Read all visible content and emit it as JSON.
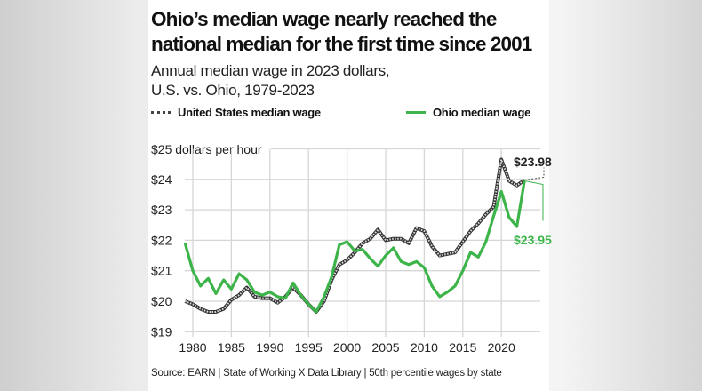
{
  "title": "Ohio’s median wage nearly reached the national median for the first time since 2001",
  "subtitle_line1": "Annual median wage in 2023 dollars,",
  "subtitle_line2": "U.S. vs. Ohio, 1979-2023",
  "source": "Source: EARN | State of Working X Data Library | 50th percentile wages by state",
  "chart_data": {
    "type": "line",
    "ylabel": "$25 dollars per hour",
    "ylim": [
      19,
      25
    ],
    "xlim": [
      1979,
      2023
    ],
    "grid": true,
    "legend": "top",
    "y_ticks": [
      "$19",
      "$20",
      "$21",
      "$22",
      "$23",
      "$24",
      "$25"
    ],
    "x_ticks": [
      "1980",
      "1985",
      "1990",
      "1995",
      "2000",
      "2005",
      "2010",
      "2015",
      "2020"
    ],
    "x": [
      1979,
      1980,
      1981,
      1982,
      1983,
      1984,
      1985,
      1986,
      1987,
      1988,
      1989,
      1990,
      1991,
      1992,
      1993,
      1994,
      1995,
      1996,
      1997,
      1998,
      1999,
      2000,
      2001,
      2002,
      2003,
      2004,
      2005,
      2006,
      2007,
      2008,
      2009,
      2010,
      2011,
      2012,
      2013,
      2014,
      2015,
      2016,
      2017,
      2018,
      2019,
      2020,
      2021,
      2022,
      2023
    ],
    "series": [
      {
        "name": "United States median wage",
        "color": "#555555",
        "style": "dotted",
        "values": [
          20.0,
          19.9,
          19.75,
          19.65,
          19.65,
          19.75,
          20.05,
          20.2,
          20.45,
          20.15,
          20.1,
          20.1,
          19.95,
          20.15,
          20.45,
          20.2,
          19.9,
          19.65,
          20.0,
          20.7,
          21.2,
          21.35,
          21.6,
          21.9,
          22.05,
          22.35,
          22.0,
          22.05,
          22.05,
          21.9,
          22.4,
          22.3,
          21.8,
          21.5,
          21.55,
          21.6,
          21.95,
          22.3,
          22.55,
          22.85,
          23.1,
          24.65,
          23.95,
          23.8,
          23.98
        ],
        "end_label": "$23.98"
      },
      {
        "name": "Ohio median wage",
        "color": "#3cb44a",
        "style": "solid",
        "values": [
          21.9,
          21.0,
          20.5,
          20.75,
          20.25,
          20.7,
          20.4,
          20.9,
          20.7,
          20.3,
          20.2,
          20.3,
          20.15,
          20.1,
          20.6,
          20.2,
          19.9,
          19.65,
          20.15,
          20.8,
          21.85,
          21.95,
          21.65,
          21.7,
          21.4,
          21.15,
          21.5,
          21.75,
          21.3,
          21.2,
          21.3,
          21.1,
          20.5,
          20.15,
          20.3,
          20.5,
          21.0,
          21.6,
          21.45,
          21.95,
          22.8,
          23.6,
          22.75,
          22.45,
          23.95
        ],
        "end_label": "$23.95"
      }
    ]
  }
}
